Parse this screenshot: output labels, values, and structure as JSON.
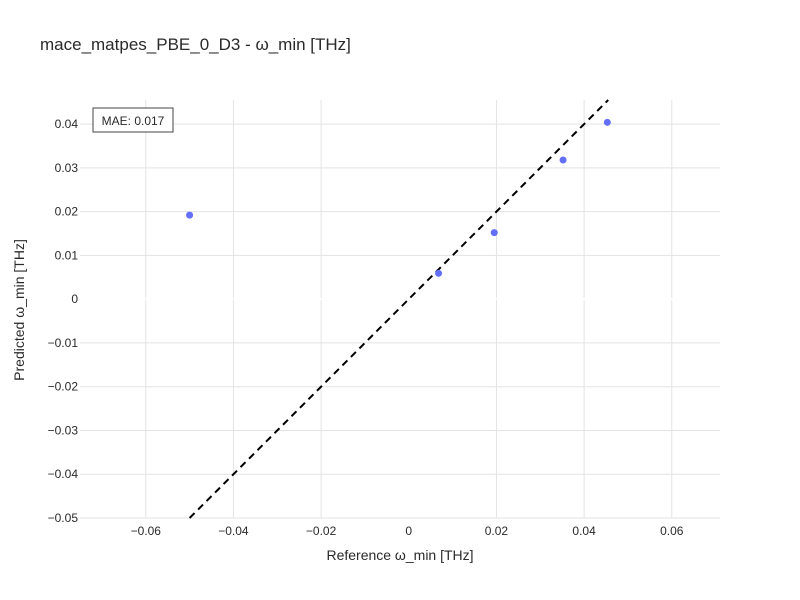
{
  "chart_data": {
    "type": "scatter",
    "title": "mace_matpes_PBE_0_D3 - ω_min [THz]",
    "xlabel": "Reference ω_min [THz]",
    "ylabel": "Predicted ω_min [THz]",
    "xlim": [
      -0.075,
      0.071
    ],
    "ylim": [
      -0.05,
      0.0455
    ],
    "xticks": [
      -0.06,
      -0.04,
      -0.02,
      0,
      0.02,
      0.04,
      0.06
    ],
    "xtick_labels": [
      "−0.06",
      "−0.04",
      "−0.02",
      "0",
      "0.02",
      "0.04",
      "0.06"
    ],
    "yticks": [
      -0.05,
      -0.04,
      -0.03,
      -0.02,
      -0.01,
      0,
      0.01,
      0.02,
      0.03,
      0.04
    ],
    "ytick_labels": [
      "−0.05",
      "−0.04",
      "−0.03",
      "−0.02",
      "−0.01",
      "0",
      "0.01",
      "0.02",
      "0.03",
      "0.04"
    ],
    "grid": true,
    "marker_color": "#636efa",
    "reference_line": {
      "style": "dashed",
      "color": "#000000",
      "equation": "y = x"
    },
    "annotation": "MAE: 0.017",
    "points": [
      {
        "x": -0.05,
        "y": 0.0192
      },
      {
        "x": 0.0068,
        "y": 0.0059
      },
      {
        "x": 0.0195,
        "y": 0.0152
      },
      {
        "x": 0.0352,
        "y": 0.0318
      },
      {
        "x": 0.0453,
        "y": 0.0404
      }
    ]
  }
}
